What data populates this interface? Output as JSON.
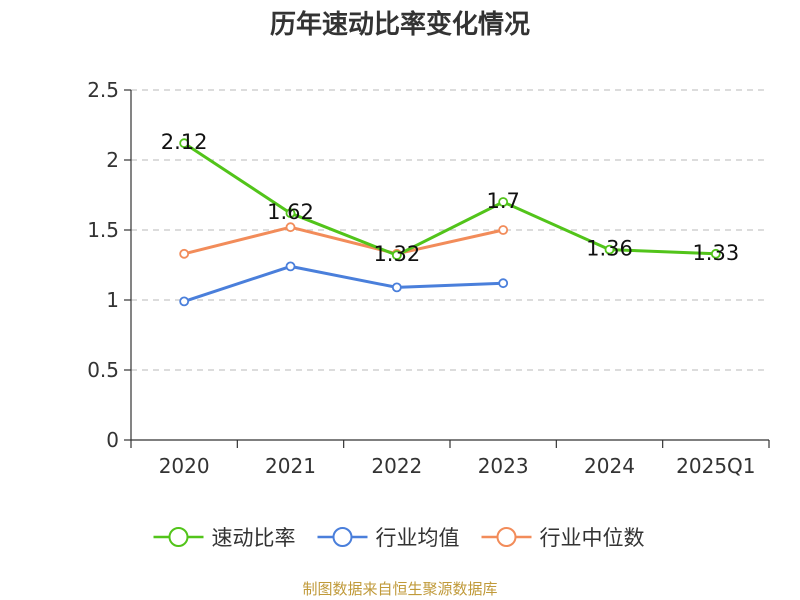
{
  "chart_data": {
    "type": "line",
    "title": "历年速动比率变化情况",
    "categories": [
      "2020",
      "2021",
      "2022",
      "2023",
      "2024",
      "2025Q1"
    ],
    "ylim": [
      0,
      2.5
    ],
    "yticks": [
      "0",
      "0.5",
      "1",
      "1.5",
      "2",
      "2.5"
    ],
    "ytick_values": [
      0,
      0.5,
      1,
      1.5,
      2,
      2.5
    ],
    "grid": true,
    "legend_position": "bottom",
    "series": [
      {
        "name": "速动比率",
        "color": "#52c41a",
        "values": [
          2.12,
          1.62,
          1.32,
          1.7,
          1.36,
          1.33
        ],
        "labels": [
          "2.12",
          "1.62",
          "1.32",
          "1.7",
          "1.36",
          "1.33"
        ]
      },
      {
        "name": "行业均值",
        "color": "#4a7fdb",
        "values": [
          0.99,
          1.24,
          1.09,
          1.12,
          null,
          null
        ]
      },
      {
        "name": "行业中位数",
        "color": "#f28c5a",
        "values": [
          1.33,
          1.52,
          1.33,
          1.5,
          null,
          null
        ]
      }
    ]
  },
  "source": "制图数据来自恒生聚源数据库",
  "source_color": "#c09a3a"
}
